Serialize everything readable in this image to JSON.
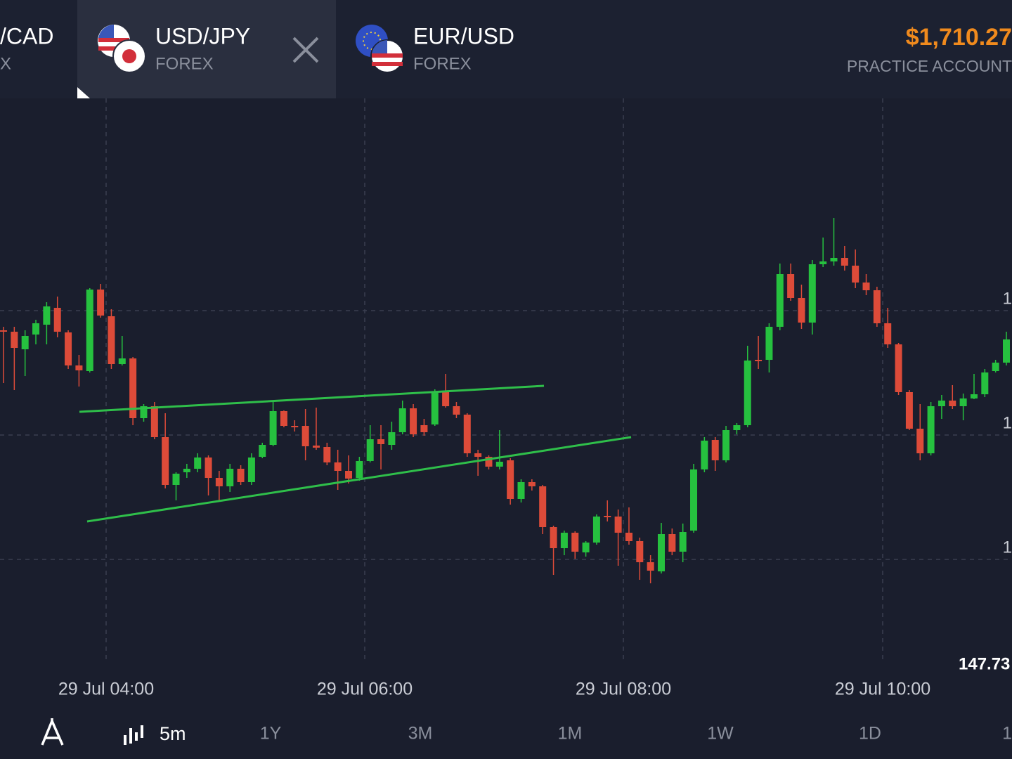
{
  "tabs": [
    {
      "symbol": "/CAD",
      "market": "X"
    },
    {
      "symbol": "USD/JPY",
      "market": "FOREX"
    },
    {
      "symbol": "EUR/USD",
      "market": "FOREX"
    }
  ],
  "account": {
    "balance": "$1,710.27",
    "label": "PRACTICE ACCOUNT"
  },
  "chart": {
    "time_labels": [
      "29 Jul 04:00",
      "29 Jul 06:00",
      "29 Jul 08:00",
      "29 Jul 10:00"
    ],
    "price_axis_labels": [
      "1",
      "1",
      "1"
    ],
    "current_price": "147.73"
  },
  "toolbar": {
    "interval": "5m",
    "ranges": [
      "1Y",
      "3M",
      "1M",
      "1W",
      "1D",
      "1"
    ]
  }
}
